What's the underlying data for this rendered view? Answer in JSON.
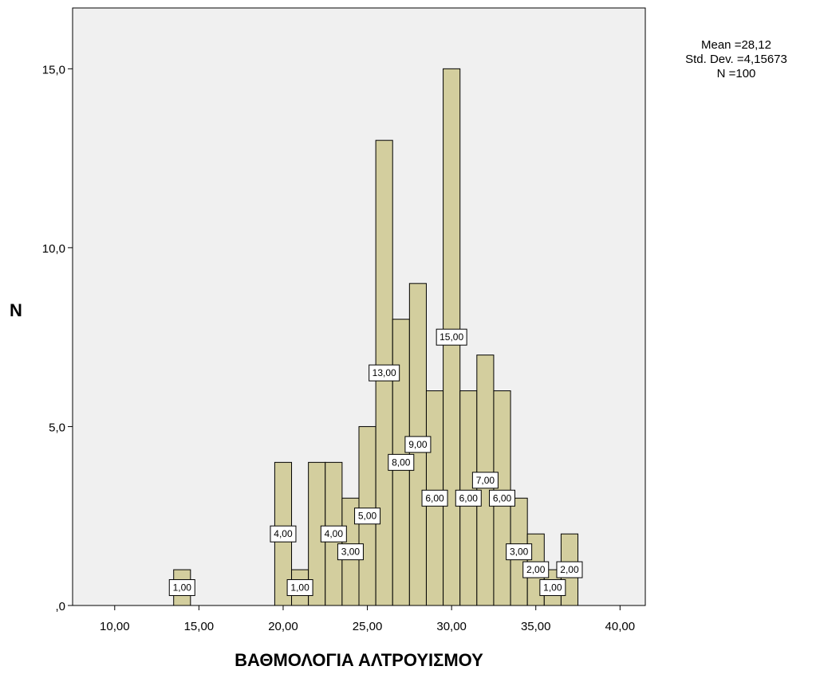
{
  "chart_data": {
    "type": "bar",
    "xlabel": "ΒΑΘΜΟΛΟΓΙΑ ΑΛΤΡΟΥΙΣΜΟΥ",
    "ylabel": "N",
    "xlim": [
      7.5,
      41.5
    ],
    "ylim": [
      0,
      16.7
    ],
    "x_ticks": [
      {
        "value": 10,
        "label": "10,00"
      },
      {
        "value": 15,
        "label": "15,00"
      },
      {
        "value": 20,
        "label": "20,00"
      },
      {
        "value": 25,
        "label": "25,00"
      },
      {
        "value": 30,
        "label": "30,00"
      },
      {
        "value": 35,
        "label": "35,00"
      },
      {
        "value": 40,
        "label": "40,00"
      }
    ],
    "y_ticks": [
      {
        "value": 0,
        "label": ",0"
      },
      {
        "value": 5,
        "label": "5,0"
      },
      {
        "value": 10,
        "label": "10,0"
      },
      {
        "value": 15,
        "label": "15,0"
      }
    ],
    "bin_width": 1,
    "bars": [
      {
        "x": 14,
        "value": 1,
        "label": "1,00"
      },
      {
        "x": 20,
        "value": 4,
        "label": "4,00"
      },
      {
        "x": 21,
        "value": 1,
        "label": "1,00"
      },
      {
        "x": 22,
        "value": 4,
        "label": ""
      },
      {
        "x": 23,
        "value": 4,
        "label": "4,00"
      },
      {
        "x": 24,
        "value": 3,
        "label": "3,00"
      },
      {
        "x": 25,
        "value": 5,
        "label": "5,00"
      },
      {
        "x": 26,
        "value": 13,
        "label": "13,00"
      },
      {
        "x": 27,
        "value": 8,
        "label": "8,00"
      },
      {
        "x": 28,
        "value": 9,
        "label": "9,00"
      },
      {
        "x": 29,
        "value": 6,
        "label": "6,00"
      },
      {
        "x": 30,
        "value": 15,
        "label": "15,00"
      },
      {
        "x": 31,
        "value": 6,
        "label": "6,00"
      },
      {
        "x": 32,
        "value": 7,
        "label": "7,00"
      },
      {
        "x": 33,
        "value": 6,
        "label": "6,00"
      },
      {
        "x": 34,
        "value": 3,
        "label": "3,00"
      },
      {
        "x": 35,
        "value": 2,
        "label": "2,00"
      },
      {
        "x": 36,
        "value": 1,
        "label": "1,00"
      },
      {
        "x": 37,
        "value": 2,
        "label": "2,00"
      }
    ],
    "stats": {
      "mean": "Mean =28,12",
      "std_dev": "Std. Dev. =4,15673",
      "n": "N =100"
    },
    "grid": false,
    "colors": {
      "plot_background": "#f0f0f0",
      "bar_fill": "#d3ce9e",
      "bar_stroke": "#000000",
      "label_box_fill": "#ffffff"
    }
  }
}
